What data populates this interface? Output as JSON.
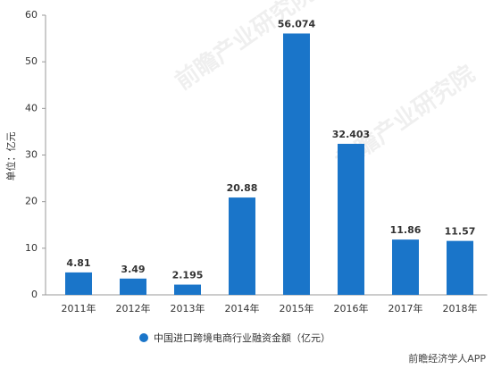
{
  "chart_data": {
    "type": "bar",
    "categories": [
      "2011年",
      "2012年",
      "2013年",
      "2014年",
      "2015年",
      "2016年",
      "2017年",
      "2018年"
    ],
    "values": [
      4.81,
      3.49,
      2.195,
      20.88,
      56.074,
      32.403,
      11.86,
      11.57
    ],
    "color": "#1a75c9",
    "ylim": [
      0,
      60
    ],
    "yticks": [
      0,
      10,
      20,
      30,
      40,
      50,
      60
    ],
    "y_label": "单位：亿元",
    "legend": "中国进口跨境电商行业融资金额（亿元）",
    "watermark": "前瞻产业研究院",
    "source": "前瞻经济学人APP"
  }
}
